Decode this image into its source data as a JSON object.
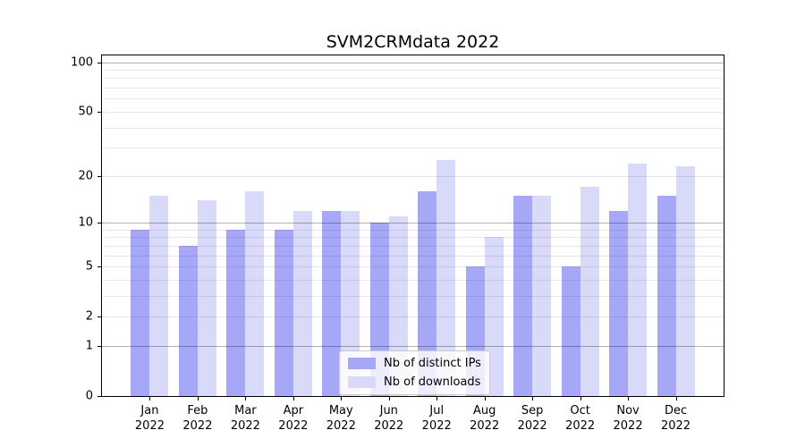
{
  "title": "SVM2CRMdata 2022",
  "chart_data": {
    "type": "bar",
    "title": "SVM2CRMdata 2022",
    "categories": [
      [
        "Jan",
        "2022"
      ],
      [
        "Feb",
        "2022"
      ],
      [
        "Mar",
        "2022"
      ],
      [
        "Apr",
        "2022"
      ],
      [
        "May",
        "2022"
      ],
      [
        "Jun",
        "2022"
      ],
      [
        "Jul",
        "2022"
      ],
      [
        "Aug",
        "2022"
      ],
      [
        "Sep",
        "2022"
      ],
      [
        "Oct",
        "2022"
      ],
      [
        "Nov",
        "2022"
      ],
      [
        "Dec",
        "2022"
      ]
    ],
    "series": [
      {
        "name": "Nb of distinct IPs",
        "key": "distinct-ips",
        "color": "#a7a7f7",
        "values": [
          9,
          7,
          9,
          9,
          12,
          10,
          16,
          5,
          15,
          5,
          12,
          15
        ]
      },
      {
        "name": "Nb of downloads",
        "key": "downloads",
        "color": "#d9d9f9",
        "values": [
          15,
          14,
          16,
          12,
          12,
          11,
          25,
          8,
          15,
          17,
          24,
          23
        ]
      }
    ],
    "xlabel": "",
    "ylabel": "",
    "y_axis": {
      "scale": "log1p",
      "tick_labels": [
        "0",
        "1",
        "2",
        "5",
        "10",
        "20",
        "50",
        "100"
      ],
      "ticks": [
        0,
        1,
        2,
        5,
        10,
        20,
        50,
        100
      ],
      "major_gridlines": [
        1,
        10,
        100
      ],
      "minor_gridlines": [
        2,
        3,
        4,
        5,
        6,
        7,
        8,
        9,
        20,
        30,
        40,
        50,
        60,
        70,
        80,
        90
      ],
      "ylim": [
        0,
        110
      ]
    },
    "legend": {
      "position": "lower center",
      "entries": [
        "Nb of distinct IPs",
        "Nb of downloads"
      ]
    },
    "grid": true
  },
  "colors": {
    "background": "#ffffff",
    "bar_distinct_ips": "#a7a7f7",
    "bar_downloads": "#d9d9f9",
    "grid_major": "rgba(0,0,0,0.30)",
    "grid_minor": "rgba(0,0,0,0.09)",
    "axis": "#000000",
    "text": "#000000",
    "legend_border": "#cccccc",
    "legend_background": "rgba(255,255,255,0.8)"
  }
}
